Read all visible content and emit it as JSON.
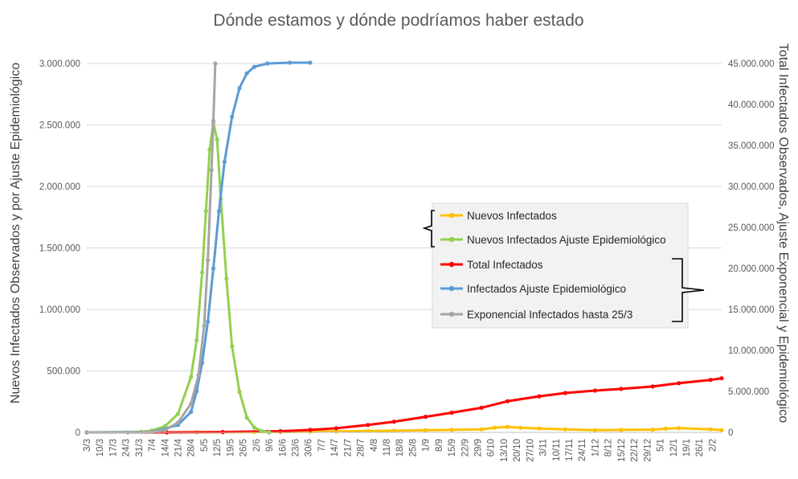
{
  "chart_data": {
    "type": "line",
    "title": "Dónde estamos y dónde podríamos haber estado",
    "ylabel_left": "Nuevos Infectados Observados y por Ajuste Epidemiológico",
    "ylabel_right": "Total Infectados Observados, Ajuste Exponencial y Epidemiológico",
    "ylim_left": [
      0,
      3000000
    ],
    "ylim_right": [
      0,
      45000000
    ],
    "yticks_left": [
      "0",
      "500.000",
      "1.000.000",
      "1.500.000",
      "2.000.000",
      "2.500.000",
      "3.000.000"
    ],
    "yticks_right": [
      "0",
      "5.000.000",
      "10.000.000",
      "15.000.000",
      "20.000.000",
      "25.000.000",
      "30.000.000",
      "35.000.000",
      "40.000.000",
      "45.000.000"
    ],
    "x_start": "2020-03-03",
    "x_end": "2021-02-07",
    "xticks": [
      "3/3",
      "10/3",
      "17/3",
      "24/3",
      "31/3",
      "7/4",
      "14/4",
      "21/4",
      "28/4",
      "5/5",
      "12/5",
      "19/5",
      "26/5",
      "2/6",
      "9/6",
      "16/6",
      "23/6",
      "30/6",
      "7/7",
      "14/7",
      "21/7",
      "28/7",
      "4/8",
      "11/8",
      "18/8",
      "25/8",
      "1/9",
      "8/9",
      "15/9",
      "22/9",
      "29/9",
      "6/10",
      "13/10",
      "20/10",
      "27/10",
      "3/11",
      "10/11",
      "17/11",
      "24/11",
      "1/12",
      "8/12",
      "15/12",
      "22/12",
      "29/12",
      "5/1",
      "12/1",
      "19/1",
      "26/1",
      "2/2"
    ],
    "grid": true,
    "legend_position": "right",
    "series": [
      {
        "name": "Nuevos Infectados",
        "axis": "left",
        "color": "#FFC000",
        "points": [
          [
            "2020-03-03",
            0
          ],
          [
            "2020-04-15",
            500
          ],
          [
            "2020-05-01",
            1500
          ],
          [
            "2020-05-15",
            1500
          ],
          [
            "2020-06-01",
            2500
          ],
          [
            "2020-06-15",
            3500
          ],
          [
            "2020-07-01",
            5000
          ],
          [
            "2020-07-15",
            7000
          ],
          [
            "2020-08-01",
            11000
          ],
          [
            "2020-08-15",
            14000
          ],
          [
            "2020-09-01",
            18000
          ],
          [
            "2020-09-15",
            20000
          ],
          [
            "2020-10-01",
            25000
          ],
          [
            "2020-10-08",
            38000
          ],
          [
            "2020-10-15",
            45000
          ],
          [
            "2020-10-22",
            37000
          ],
          [
            "2020-11-01",
            32000
          ],
          [
            "2020-11-15",
            25000
          ],
          [
            "2020-12-01",
            18000
          ],
          [
            "2020-12-15",
            20000
          ],
          [
            "2021-01-01",
            22000
          ],
          [
            "2021-01-08",
            30000
          ],
          [
            "2021-01-15",
            35000
          ],
          [
            "2021-02-01",
            25000
          ],
          [
            "2021-02-07",
            18000
          ]
        ]
      },
      {
        "name": "Nuevos Infectados Ajuste Epidemiológico",
        "axis": "left",
        "color": "#92D050",
        "points": [
          [
            "2020-03-03",
            0
          ],
          [
            "2020-04-01",
            5000
          ],
          [
            "2020-04-07",
            15000
          ],
          [
            "2020-04-14",
            50000
          ],
          [
            "2020-04-21",
            150000
          ],
          [
            "2020-04-28",
            450000
          ],
          [
            "2020-05-01",
            750000
          ],
          [
            "2020-05-04",
            1300000
          ],
          [
            "2020-05-06",
            1800000
          ],
          [
            "2020-05-08",
            2300000
          ],
          [
            "2020-05-10",
            2520000
          ],
          [
            "2020-05-12",
            2380000
          ],
          [
            "2020-05-14",
            1900000
          ],
          [
            "2020-05-17",
            1250000
          ],
          [
            "2020-05-20",
            700000
          ],
          [
            "2020-05-24",
            330000
          ],
          [
            "2020-05-28",
            120000
          ],
          [
            "2020-06-01",
            40000
          ],
          [
            "2020-06-05",
            10000
          ],
          [
            "2020-06-09",
            0
          ]
        ]
      },
      {
        "name": "Total Infectados",
        "axis": "right",
        "color": "#FF0000",
        "points": [
          [
            "2020-03-03",
            0
          ],
          [
            "2020-04-15",
            3000
          ],
          [
            "2020-05-15",
            50000
          ],
          [
            "2020-06-15",
            150000
          ],
          [
            "2020-07-01",
            300000
          ],
          [
            "2020-07-15",
            500000
          ],
          [
            "2020-08-01",
            900000
          ],
          [
            "2020-08-15",
            1300000
          ],
          [
            "2020-09-01",
            1900000
          ],
          [
            "2020-09-15",
            2400000
          ],
          [
            "2020-10-01",
            3000000
          ],
          [
            "2020-10-15",
            3800000
          ],
          [
            "2020-11-01",
            4400000
          ],
          [
            "2020-11-15",
            4800000
          ],
          [
            "2020-12-01",
            5100000
          ],
          [
            "2020-12-15",
            5300000
          ],
          [
            "2021-01-01",
            5600000
          ],
          [
            "2021-01-15",
            6000000
          ],
          [
            "2021-02-01",
            6400000
          ],
          [
            "2021-02-07",
            6600000
          ]
        ]
      },
      {
        "name": "Infectados Ajuste Epidemiológico",
        "axis": "right",
        "color": "#5B9BD5",
        "points": [
          [
            "2020-03-03",
            0
          ],
          [
            "2020-04-07",
            50000
          ],
          [
            "2020-04-21",
            900000
          ],
          [
            "2020-04-28",
            2500000
          ],
          [
            "2020-05-01",
            5000000
          ],
          [
            "2020-05-04",
            8500000
          ],
          [
            "2020-05-07",
            13500000
          ],
          [
            "2020-05-10",
            20000000
          ],
          [
            "2020-05-13",
            27000000
          ],
          [
            "2020-05-16",
            33000000
          ],
          [
            "2020-05-20",
            38500000
          ],
          [
            "2020-05-24",
            42000000
          ],
          [
            "2020-05-28",
            43800000
          ],
          [
            "2020-06-01",
            44600000
          ],
          [
            "2020-06-08",
            45000000
          ],
          [
            "2020-06-20",
            45100000
          ],
          [
            "2020-07-01",
            45100000
          ]
        ]
      },
      {
        "name": "Exponencial Infectados hasta 25/3",
        "axis": "right",
        "color": "#A5A5A5",
        "points": [
          [
            "2020-03-03",
            0
          ],
          [
            "2020-03-25",
            3000
          ],
          [
            "2020-04-07",
            50000
          ],
          [
            "2020-04-14",
            300000
          ],
          [
            "2020-04-21",
            1200000
          ],
          [
            "2020-04-28",
            3500000
          ],
          [
            "2020-05-02",
            7000000
          ],
          [
            "2020-05-05",
            13000000
          ],
          [
            "2020-05-07",
            21000000
          ],
          [
            "2020-05-09",
            32000000
          ],
          [
            "2020-05-10",
            38000000
          ],
          [
            "2020-05-11",
            45000000
          ]
        ]
      }
    ]
  }
}
